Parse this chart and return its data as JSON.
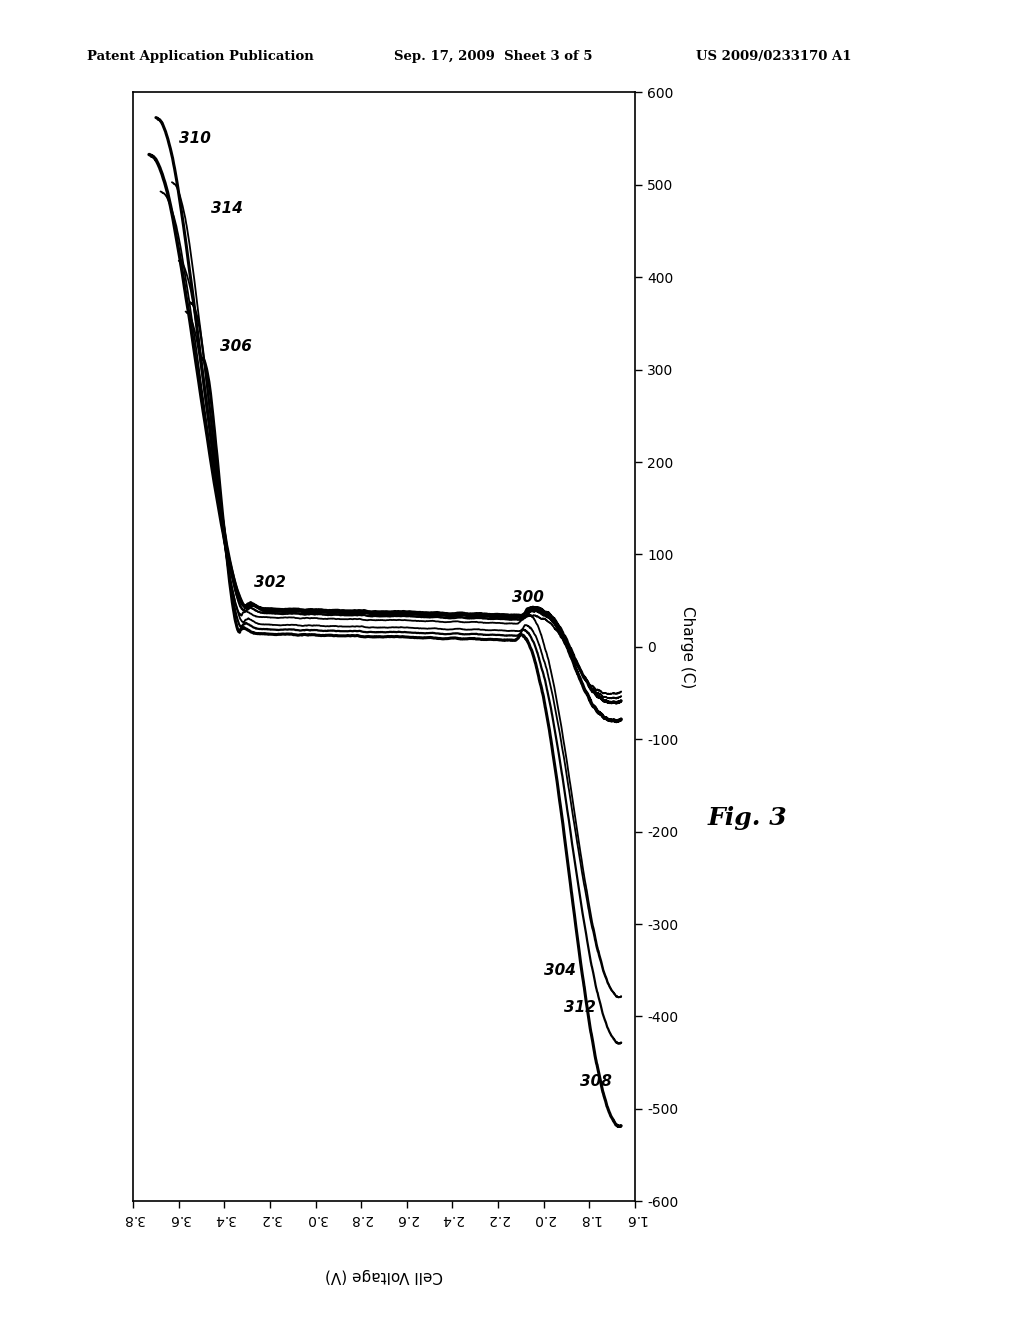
{
  "header_left": "Patent Application Publication",
  "header_mid": "Sep. 17, 2009  Sheet 3 of 5",
  "header_right": "US 2009/0233170 A1",
  "fig_label": "Fig. 3",
  "xlabel": "Cell Voltage (V)",
  "ylabel": "Charge (C)",
  "xlim": [
    3.8,
    1.6
  ],
  "ylim": [
    -600,
    600
  ],
  "xticks": [
    3.8,
    3.6,
    3.4,
    3.2,
    3.0,
    2.8,
    2.6,
    2.4,
    2.2,
    2.0,
    1.8,
    1.6
  ],
  "yticks": [
    -600,
    -500,
    -400,
    -300,
    -200,
    -100,
    0,
    100,
    200,
    300,
    400,
    500,
    600
  ],
  "background_color": "#ffffff",
  "line_color": "#000000"
}
